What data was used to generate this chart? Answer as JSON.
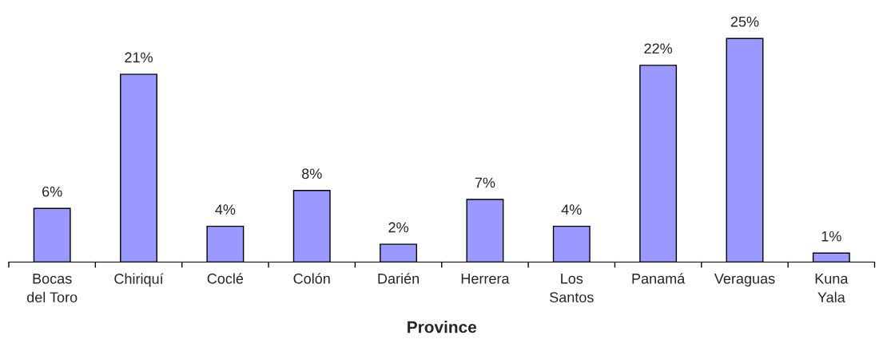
{
  "chart_data": {
    "type": "bar",
    "xlabel": "Province",
    "categories": [
      "Bocas\ndel Toro",
      "Chiriquí",
      "Coclé",
      "Colón",
      "Darién",
      "Herrera",
      "Los\nSantos",
      "Panamá",
      "Veraguas",
      "Kuna\nYala"
    ],
    "values": [
      6,
      21,
      4,
      8,
      2,
      7,
      4,
      22,
      25,
      1
    ],
    "value_labels": [
      "6%",
      "21%",
      "4%",
      "8%",
      "2%",
      "7%",
      "4%",
      "22%",
      "25%",
      "1%"
    ],
    "color": "#9999ff",
    "grid": false,
    "legend": false
  }
}
